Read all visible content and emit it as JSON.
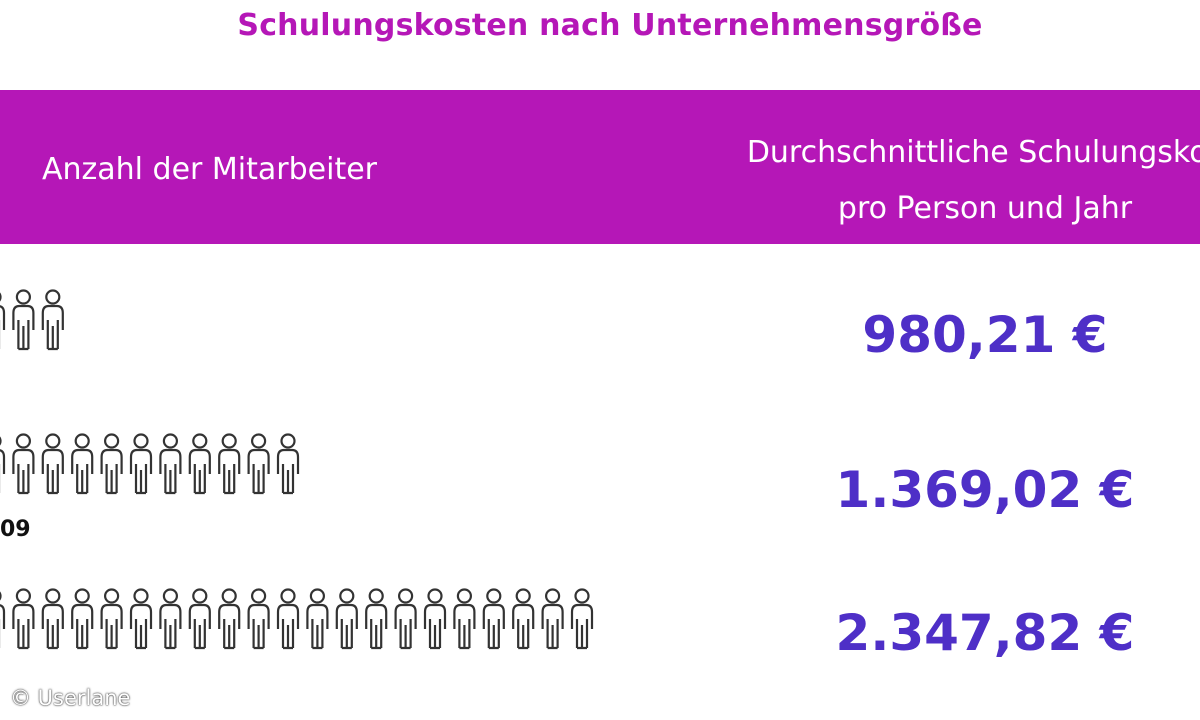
{
  "title": "Schulungskosten nach Unternehmensgröße",
  "header": {
    "left": "Anzahl der Mitarbeiter",
    "right_line1": "Durchschnittliche Schulungskos",
    "right_line2": "pro Person und Jahr"
  },
  "colors": {
    "accent": "#b517b7",
    "value": "#4e2fc7",
    "icon": "#333333"
  },
  "chart_data": {
    "type": "table",
    "title": "Schulungskosten nach Unternehmensgröße",
    "columns": [
      "Anzahl der Mitarbeiter",
      "Durchschnittliche Schulungskos pro Person und Jahr"
    ],
    "rows": [
      {
        "icons": 3,
        "label": "",
        "value": "980,21 €"
      },
      {
        "icons": 11,
        "label": "09",
        "value": "1.369,02 €"
      },
      {
        "icons": 21,
        "label": "",
        "value": "2.347,82 €"
      }
    ]
  },
  "copyright": "© Userlane"
}
